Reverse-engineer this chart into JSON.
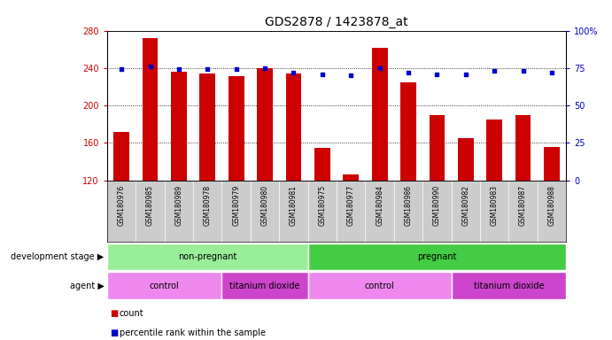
{
  "title": "GDS2878 / 1423878_at",
  "samples": [
    "GSM180976",
    "GSM180985",
    "GSM180989",
    "GSM180978",
    "GSM180979",
    "GSM180980",
    "GSM180981",
    "GSM180975",
    "GSM180977",
    "GSM180984",
    "GSM180986",
    "GSM180990",
    "GSM180982",
    "GSM180983",
    "GSM180987",
    "GSM180988"
  ],
  "counts": [
    172,
    272,
    236,
    234,
    231,
    240,
    234,
    155,
    126,
    262,
    225,
    190,
    165,
    185,
    190,
    156
  ],
  "percentiles": [
    74,
    76,
    74,
    74,
    74,
    75,
    72,
    71,
    70,
    75,
    72,
    71,
    71,
    73,
    73,
    72
  ],
  "ylim_left": [
    120,
    280
  ],
  "ylim_right": [
    0,
    100
  ],
  "yticks_left": [
    120,
    160,
    200,
    240,
    280
  ],
  "yticks_right": [
    0,
    25,
    50,
    75,
    100
  ],
  "dev_groups": [
    {
      "label": "non-pregnant",
      "start": 0,
      "end": 7,
      "color": "#99EE99"
    },
    {
      "label": "pregnant",
      "start": 7,
      "end": 16,
      "color": "#44CC44"
    }
  ],
  "agent_groups": [
    {
      "label": "control",
      "start": 0,
      "end": 4,
      "color": "#EE88EE"
    },
    {
      "label": "titanium dioxide",
      "start": 4,
      "end": 7,
      "color": "#CC44CC"
    },
    {
      "label": "control",
      "start": 7,
      "end": 12,
      "color": "#EE88EE"
    },
    {
      "label": "titanium dioxide",
      "start": 12,
      "end": 16,
      "color": "#CC44CC"
    }
  ],
  "bar_color": "#CC0000",
  "dot_color": "#0000CC",
  "background_color": "#FFFFFF",
  "plot_bg": "#FFFFFF",
  "tick_label_bg": "#CCCCCC",
  "tick_color_left": "#CC0000",
  "tick_color_right": "#0000CC",
  "title_fontsize": 10,
  "sample_fontsize": 5.5,
  "group_fontsize": 7,
  "legend_fontsize": 7
}
